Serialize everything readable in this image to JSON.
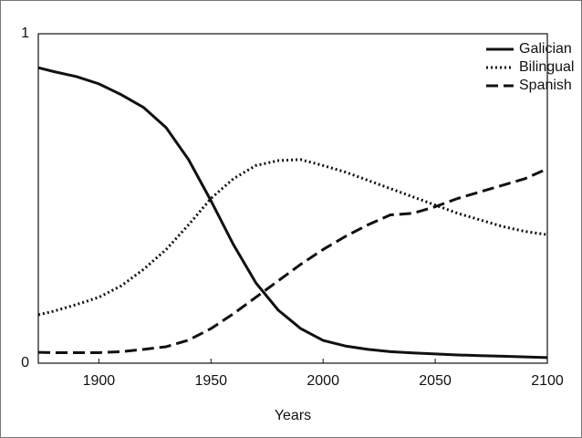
{
  "chart_data": {
    "type": "line",
    "x_label": "Years",
    "x": [
      1873,
      1880,
      1890,
      1900,
      1910,
      1920,
      1930,
      1940,
      1950,
      1960,
      1970,
      1980,
      1990,
      2000,
      2010,
      2020,
      2030,
      2040,
      2050,
      2060,
      2070,
      2080,
      2090,
      2100
    ],
    "series": [
      {
        "name": "Galician",
        "color": "#111111",
        "style": "solid",
        "values": [
          0.897,
          0.885,
          0.87,
          0.848,
          0.815,
          0.776,
          0.715,
          0.618,
          0.493,
          0.36,
          0.244,
          0.161,
          0.105,
          0.069,
          0.052,
          0.042,
          0.035,
          0.031,
          0.028,
          0.025,
          0.023,
          0.021,
          0.019,
          0.017
        ]
      },
      {
        "name": "Bilingual",
        "color": "#111111",
        "style": "dotted",
        "values": [
          0.147,
          0.158,
          0.178,
          0.2,
          0.235,
          0.285,
          0.345,
          0.42,
          0.5,
          0.56,
          0.6,
          0.615,
          0.618,
          0.6,
          0.58,
          0.555,
          0.53,
          0.505,
          0.48,
          0.455,
          0.435,
          0.415,
          0.4,
          0.39
        ]
      },
      {
        "name": "Spanish",
        "color": "#111111",
        "style": "dashed",
        "values": [
          0.033,
          0.032,
          0.032,
          0.032,
          0.035,
          0.042,
          0.05,
          0.07,
          0.105,
          0.15,
          0.2,
          0.25,
          0.3,
          0.345,
          0.385,
          0.42,
          0.45,
          0.455,
          0.475,
          0.5,
          0.52,
          0.54,
          0.56,
          0.59
        ]
      }
    ],
    "xlim": [
      1873,
      2100
    ],
    "xticks": [
      1900,
      1950,
      2000,
      2050,
      2100
    ],
    "ylim": [
      0,
      1
    ],
    "yticks": [
      0,
      1
    ],
    "legend": "upper right",
    "grid": false
  }
}
